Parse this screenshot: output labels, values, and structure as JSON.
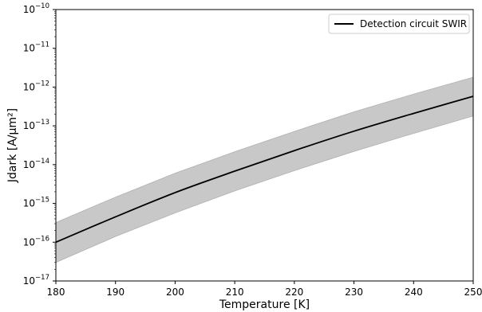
{
  "chart_data": {
    "type": "line",
    "title": "",
    "xlabel": "Temperature [K]",
    "ylabel": "Jdark [A/µm²]",
    "xlim": [
      180,
      250
    ],
    "ylim": [
      1e-17,
      1e-10
    ],
    "yscale": "log",
    "x_ticks": [
      180,
      190,
      200,
      210,
      220,
      230,
      240,
      250
    ],
    "y_tick_mantissa": "10",
    "y_tick_exponents": [
      "−17",
      "−16",
      "−15",
      "−14",
      "−13",
      "−12",
      "−11",
      "−10"
    ],
    "grid": false,
    "legend_position": "top-right",
    "series": [
      {
        "name": "Detection circuit SWIR",
        "color": "#000000",
        "x": [
          180,
          190,
          200,
          210,
          220,
          230,
          240,
          250
        ],
        "y": [
          1e-16,
          4.5e-16,
          1.9e-15,
          6.8e-15,
          2.3e-14,
          7.3e-14,
          2.1e-13,
          5.8e-13
        ],
        "band_lower": [
          3e-17,
          1.4e-16,
          5.7e-16,
          2.1e-15,
          7e-15,
          2.2e-14,
          6.4e-14,
          1.8e-13
        ],
        "band_upper": [
          3.2e-16,
          1.45e-15,
          6e-15,
          2.15e-14,
          7.2e-14,
          2.3e-13,
          6.6e-13,
          1.8e-12
        ],
        "band_color": "#c8c8c8"
      }
    ]
  }
}
